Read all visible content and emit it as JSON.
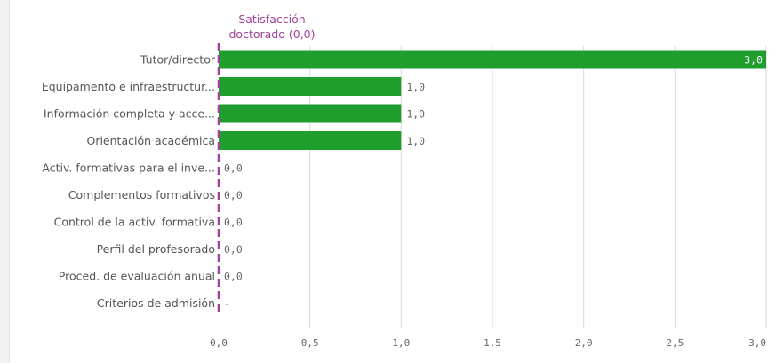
{
  "chart_data": {
    "type": "bar",
    "orientation": "horizontal",
    "reference_line": {
      "label_line1": "Satisfacción",
      "label_line2": "doctorado (0,0)",
      "value": 0.0,
      "color": "#a0429a"
    },
    "categories": [
      "Tutor/director",
      "Equipamento e infraestructur...",
      "Información completa y acce...",
      "Orientación académica",
      "Activ. formativas para el inve...",
      "Complementos formativos",
      "Control de la activ. formativa",
      "Perfil del profesorado",
      "Proced. de evaluación anual",
      "Criterios de admisión"
    ],
    "values": [
      3.0,
      1.0,
      1.0,
      1.0,
      0.0,
      0.0,
      0.0,
      0.0,
      0.0,
      null
    ],
    "data_labels": [
      "3,0",
      "1,0",
      "1,0",
      "1,0",
      "0,0",
      "0,0",
      "0,0",
      "0,0",
      "0,0",
      "-"
    ],
    "x_ticks": [
      0,
      0.5,
      1.0,
      1.5,
      2.0,
      2.5,
      3.0
    ],
    "x_tick_labels": [
      "0,0",
      "0,5",
      "1,0",
      "1,5",
      "2,0",
      "2,5",
      "3,0"
    ],
    "xlim": [
      0,
      3.0
    ],
    "grid": true,
    "bar_color": "#1f9e2e"
  }
}
